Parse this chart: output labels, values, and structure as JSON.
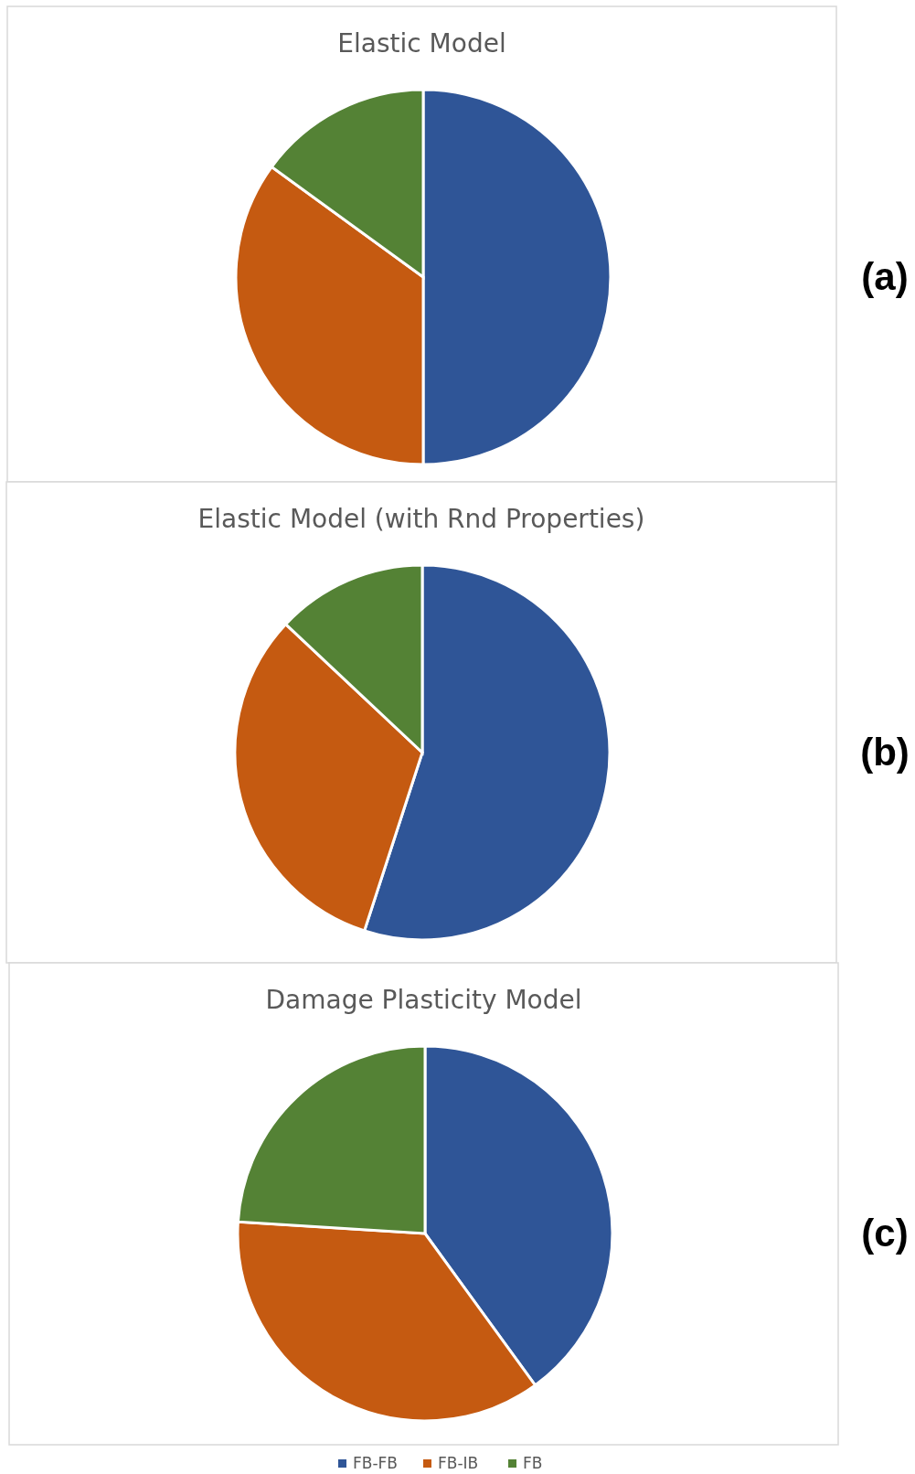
{
  "chart_data": [
    {
      "type": "pie",
      "title": "Elastic Model",
      "categories": [
        null,
        null,
        null
      ],
      "values": [
        50,
        35,
        15
      ],
      "colors": [
        "#2f5597",
        "#c55a11",
        "#548235"
      ],
      "annotations": [
        "(a)"
      ],
      "legend": false
    },
    {
      "type": "pie",
      "title": "Elastic Model (with Rnd Properties)",
      "categories": [
        null,
        null,
        null
      ],
      "values": [
        55,
        32,
        13
      ],
      "colors": [
        "#2f5597",
        "#c55a11",
        "#548235"
      ],
      "annotations": [
        "(b)"
      ],
      "legend": false
    },
    {
      "type": "pie",
      "title": "Damage Plasticity Model",
      "categories": [
        "FB-FB",
        "FB-IB",
        "FB"
      ],
      "values": [
        40,
        36,
        24
      ],
      "colors": [
        "#2f5597",
        "#c55a11",
        "#548235"
      ],
      "annotations": [
        "(c)"
      ],
      "legend": "bottom"
    }
  ]
}
